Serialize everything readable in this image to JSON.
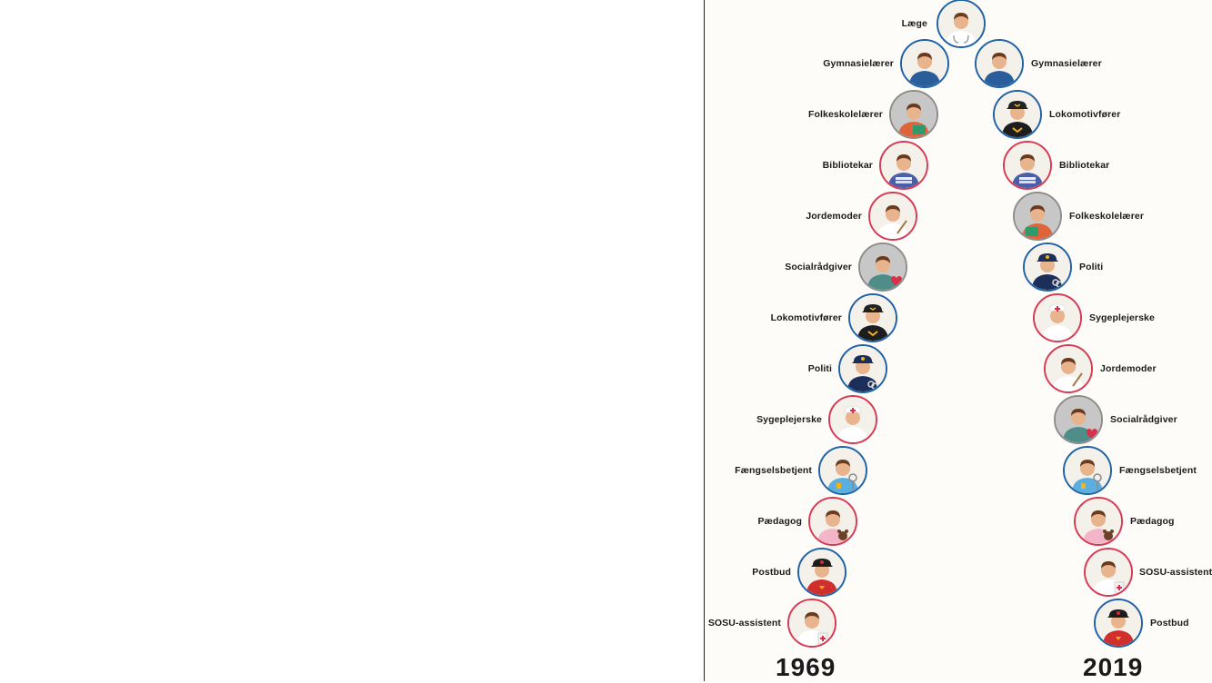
{
  "top": {
    "label": "Læge",
    "icon": "doctor-icon",
    "ring": "blue"
  },
  "left_column": {
    "year": "1969",
    "items": [
      {
        "label": "Gymnasielærer",
        "icon": "high-school-teacher-icon",
        "ring": "blue"
      },
      {
        "label": "Folkeskolelærer",
        "icon": "school-teacher-icon",
        "ring": "gray"
      },
      {
        "label": "Bibliotekar",
        "icon": "librarian-icon",
        "ring": "red"
      },
      {
        "label": "Jordemoder",
        "icon": "midwife-icon",
        "ring": "red"
      },
      {
        "label": "Socialrådgiver",
        "icon": "social-worker-icon",
        "ring": "gray"
      },
      {
        "label": "Lokomotivfører",
        "icon": "train-driver-icon",
        "ring": "blue"
      },
      {
        "label": "Politi",
        "icon": "police-icon",
        "ring": "blue"
      },
      {
        "label": "Sygeplejerske",
        "icon": "nurse-icon",
        "ring": "red"
      },
      {
        "label": "Fængselsbetjent",
        "icon": "prison-guard-icon",
        "ring": "blue"
      },
      {
        "label": "Pædagog",
        "icon": "pedagogue-icon",
        "ring": "red"
      },
      {
        "label": "Postbud",
        "icon": "postman-icon",
        "ring": "blue"
      },
      {
        "label": "SOSU-assistent",
        "icon": "care-assistant-icon",
        "ring": "red"
      }
    ]
  },
  "right_column": {
    "year": "2019",
    "items": [
      {
        "label": "Gymnasielærer",
        "icon": "high-school-teacher-icon",
        "ring": "blue"
      },
      {
        "label": "Lokomotivfører",
        "icon": "train-driver-icon",
        "ring": "blue"
      },
      {
        "label": "Bibliotekar",
        "icon": "librarian-icon",
        "ring": "red"
      },
      {
        "label": "Folkeskolelærer",
        "icon": "school-teacher-icon",
        "ring": "gray"
      },
      {
        "label": "Politi",
        "icon": "police-icon",
        "ring": "blue"
      },
      {
        "label": "Sygeplejerske",
        "icon": "nurse-icon",
        "ring": "red"
      },
      {
        "label": "Jordemoder",
        "icon": "midwife-icon",
        "ring": "red"
      },
      {
        "label": "Socialrådgiver",
        "icon": "social-worker-icon",
        "ring": "gray"
      },
      {
        "label": "Fængselsbetjent",
        "icon": "prison-guard-icon",
        "ring": "blue"
      },
      {
        "label": "Pædagog",
        "icon": "pedagogue-icon",
        "ring": "red"
      },
      {
        "label": "SOSU-assistent",
        "icon": "care-assistant-icon",
        "ring": "red"
      },
      {
        "label": "Postbud",
        "icon": "postman-icon",
        "ring": "blue"
      }
    ]
  },
  "colors": {
    "ring_blue": "#1f63a6",
    "ring_red": "#d63a55",
    "ring_gray": "#8c8c8c",
    "text": "#1a1a1a"
  }
}
